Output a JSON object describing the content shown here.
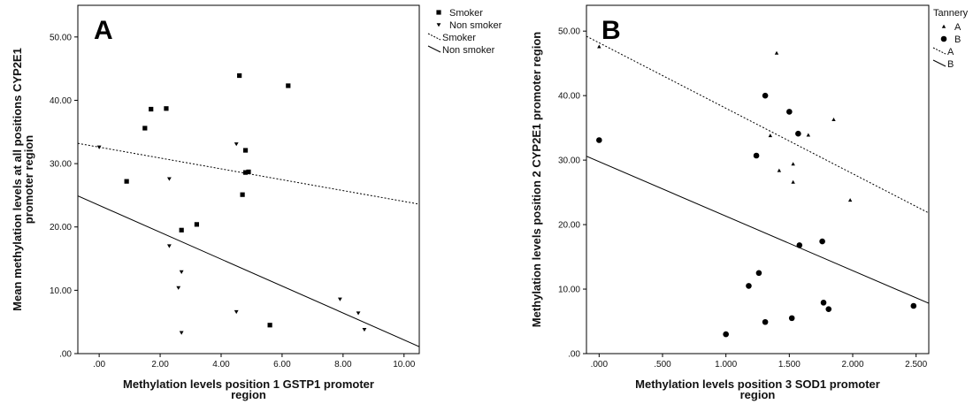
{
  "chart_data": [
    {
      "type": "scatter",
      "panel_label": "A",
      "xlabel": "Methylation levels position 1 GSTP1 promoter region",
      "ylabel": "Mean methylation levels at all positions CYP2E1 promoter region",
      "xlim": [
        -0.7,
        10.5
      ],
      "ylim": [
        0,
        55
      ],
      "xticks": [
        0,
        2,
        4,
        6,
        8,
        10
      ],
      "xtick_labels": [
        ".00",
        "2.00",
        "4.00",
        "6.00",
        "8.00",
        "10.00"
      ],
      "yticks": [
        0,
        10,
        20,
        30,
        40,
        50
      ],
      "ytick_labels": [
        ".00",
        "10.00",
        "20.00",
        "30.00",
        "40.00",
        "50.00"
      ],
      "grid": false,
      "legend_position": "outside-right",
      "series": [
        {
          "name": "Smoker",
          "marker": "square",
          "points": [
            [
              0.9,
              27.2
            ],
            [
              1.5,
              35.6
            ],
            [
              1.7,
              38.6
            ],
            [
              2.2,
              38.7
            ],
            [
              2.7,
              19.5
            ],
            [
              3.2,
              20.4
            ],
            [
              4.6,
              43.9
            ],
            [
              4.7,
              25.1
            ],
            [
              4.8,
              32.1
            ],
            [
              4.8,
              28.6
            ],
            [
              4.9,
              28.7
            ],
            [
              5.6,
              4.5
            ],
            [
              6.2,
              42.3
            ]
          ]
        },
        {
          "name": "Non smoker",
          "marker": "triangle-down",
          "points": [
            [
              0.0,
              32.6
            ],
            [
              2.3,
              27.6
            ],
            [
              2.3,
              17.0
            ],
            [
              2.6,
              10.4
            ],
            [
              2.7,
              12.9
            ],
            [
              2.7,
              3.3
            ],
            [
              4.5,
              33.1
            ],
            [
              4.5,
              6.6
            ],
            [
              7.9,
              8.6
            ],
            [
              8.5,
              6.4
            ],
            [
              8.7,
              3.8
            ]
          ]
        },
        {
          "name": "Smoker",
          "line": "dotted",
          "fit": [
            [
              -0.7,
              33.2
            ],
            [
              10.5,
              23.6
            ]
          ]
        },
        {
          "name": "Non smoker",
          "line": "solid",
          "fit": [
            [
              -0.7,
              24.9
            ],
            [
              10.5,
              1.1
            ]
          ]
        }
      ]
    },
    {
      "type": "scatter",
      "panel_label": "B",
      "legend_title": "Tannery",
      "xlabel": "Methylation levels position 3 SOD1 promoter region",
      "ylabel": "Methylation levels position 2 CYP2E1 promoter region",
      "xlim": [
        -0.1,
        2.6
      ],
      "ylim": [
        0,
        54
      ],
      "xticks": [
        0,
        0.5,
        1.0,
        1.5,
        2.0,
        2.5
      ],
      "xtick_labels": [
        ".000",
        ".500",
        "1.000",
        "1.500",
        "2.000",
        "2.500"
      ],
      "yticks": [
        0,
        10,
        20,
        30,
        40,
        50
      ],
      "ytick_labels": [
        ".00",
        "10.00",
        "20.00",
        "30.00",
        "40.00",
        "50.00"
      ],
      "grid": false,
      "legend_position": "outside-right",
      "series": [
        {
          "name": "A",
          "marker": "triangle-up",
          "points": [
            [
              0.0,
              47.6
            ],
            [
              1.35,
              33.8
            ],
            [
              1.4,
              46.6
            ],
            [
              1.42,
              28.4
            ],
            [
              1.53,
              29.4
            ],
            [
              1.53,
              26.6
            ],
            [
              1.65,
              33.9
            ],
            [
              1.85,
              36.3
            ],
            [
              1.98,
              23.8
            ]
          ]
        },
        {
          "name": "B",
          "marker": "circle",
          "points": [
            [
              0.0,
              33.1
            ],
            [
              1.0,
              3.0
            ],
            [
              1.18,
              10.5
            ],
            [
              1.24,
              30.7
            ],
            [
              1.26,
              12.5
            ],
            [
              1.31,
              40.0
            ],
            [
              1.31,
              4.9
            ],
            [
              1.5,
              37.5
            ],
            [
              1.52,
              5.5
            ],
            [
              1.57,
              34.1
            ],
            [
              1.58,
              16.8
            ],
            [
              1.76,
              17.4
            ],
            [
              1.77,
              7.9
            ],
            [
              1.81,
              6.9
            ],
            [
              2.48,
              7.4
            ]
          ]
        },
        {
          "name": "A",
          "line": "dotted",
          "fit": [
            [
              -0.1,
              49.2
            ],
            [
              2.6,
              21.8
            ]
          ]
        },
        {
          "name": "B",
          "line": "solid",
          "fit": [
            [
              -0.1,
              30.6
            ],
            [
              2.6,
              7.8
            ]
          ]
        }
      ]
    }
  ]
}
